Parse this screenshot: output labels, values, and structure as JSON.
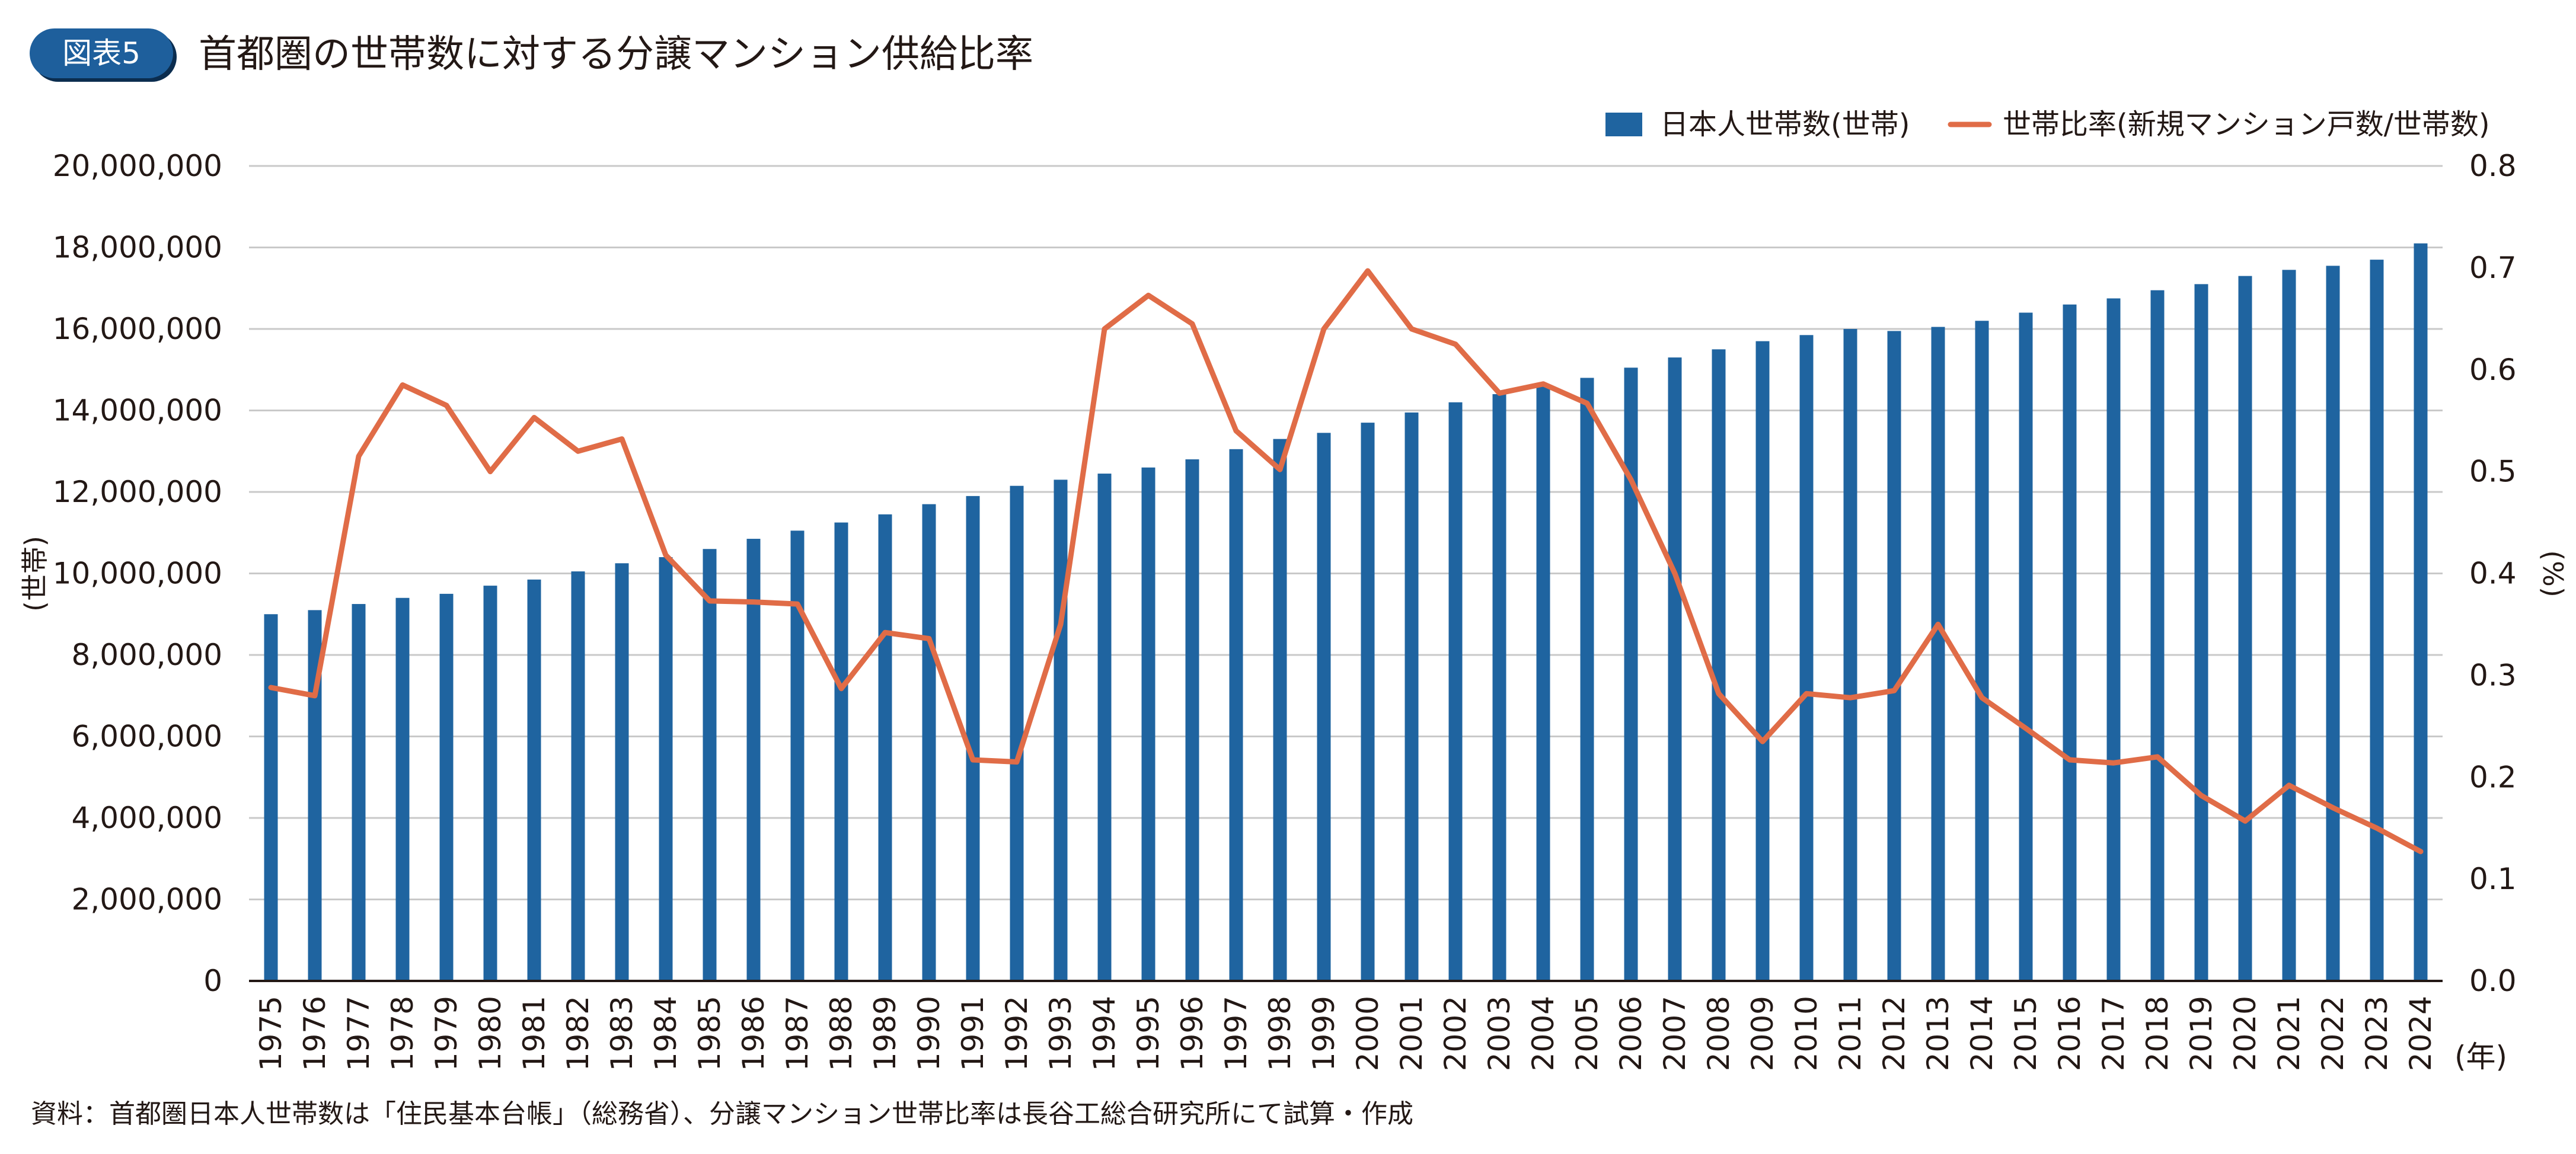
{
  "header": {
    "badge": "図表5",
    "title": "首都圏の世帯数に対する分譲マンション供給比率"
  },
  "footer": {
    "source": "資料：首都圏日本人世帯数は「住民基本台帳」（総務省）、分譲マンション世帯比率は長谷工総合研究所にて試算・作成"
  },
  "colors": {
    "bar": "#1f64a0",
    "line": "#e06c47",
    "grid": "#c9c9c9",
    "axis": "#231815",
    "badge": "#1e5f9c"
  },
  "chart_data": {
    "type": "bar",
    "x_unit_label": "(年)",
    "ylabel_left": "(世帯)",
    "ylabel_right": "(%)",
    "ylim_left": [
      0,
      20000000
    ],
    "ylim_right": [
      0.0,
      0.8
    ],
    "yticks_left": [
      "0",
      "2,000,000",
      "4,000,000",
      "6,000,000",
      "8,000,000",
      "10,000,000",
      "12,000,000",
      "14,000,000",
      "16,000,000",
      "18,000,000",
      "20,000,000"
    ],
    "yticks_right": [
      "0.0",
      "0.1",
      "0.2",
      "0.3",
      "0.4",
      "0.5",
      "0.6",
      "0.7",
      "0.8"
    ],
    "grid": true,
    "legend_position": "top-right",
    "categories": [
      "1975",
      "1976",
      "1977",
      "1978",
      "1979",
      "1980",
      "1981",
      "1982",
      "1983",
      "1984",
      "1985",
      "1986",
      "1987",
      "1988",
      "1989",
      "1990",
      "1991",
      "1992",
      "1993",
      "1994",
      "1995",
      "1996",
      "1997",
      "1998",
      "1999",
      "2000",
      "2001",
      "2002",
      "2003",
      "2004",
      "2005",
      "2006",
      "2007",
      "2008",
      "2009",
      "2010",
      "2011",
      "2012",
      "2013",
      "2014",
      "2015",
      "2016",
      "2017",
      "2018",
      "2019",
      "2020",
      "2021",
      "2022",
      "2023",
      "2024"
    ],
    "series": [
      {
        "name": "日本人世帯数(世帯)",
        "type": "bar",
        "axis": "left",
        "values": [
          9000000,
          9100000,
          9250000,
          9400000,
          9500000,
          9700000,
          9850000,
          10050000,
          10250000,
          10400000,
          10600000,
          10850000,
          11050000,
          11250000,
          11450000,
          11700000,
          11900000,
          12150000,
          12300000,
          12450000,
          12600000,
          12800000,
          13050000,
          13300000,
          13450000,
          13700000,
          13950000,
          14200000,
          14400000,
          14600000,
          14800000,
          15050000,
          15300000,
          15500000,
          15700000,
          15850000,
          16000000,
          15950000,
          16050000,
          16200000,
          16400000,
          16600000,
          16750000,
          16950000,
          17100000,
          17300000,
          17450000,
          17550000,
          17700000,
          18100000
        ]
      },
      {
        "name": "世帯比率(新規マンション戸数/世帯数)",
        "type": "line",
        "axis": "right",
        "values": [
          0.288,
          0.28,
          0.515,
          0.585,
          0.565,
          0.5,
          0.553,
          0.52,
          0.532,
          0.418,
          0.373,
          0.372,
          0.37,
          0.287,
          0.342,
          0.336,
          0.217,
          0.215,
          0.35,
          0.64,
          0.673,
          0.645,
          0.54,
          0.502,
          0.64,
          0.697,
          0.64,
          0.625,
          0.577,
          0.586,
          0.567,
          0.492,
          0.4,
          0.282,
          0.235,
          0.282,
          0.278,
          0.285,
          0.35,
          0.278,
          0.248,
          0.217,
          0.214,
          0.22,
          0.182,
          0.157,
          0.192,
          0.17,
          0.15,
          0.127
        ]
      }
    ]
  }
}
